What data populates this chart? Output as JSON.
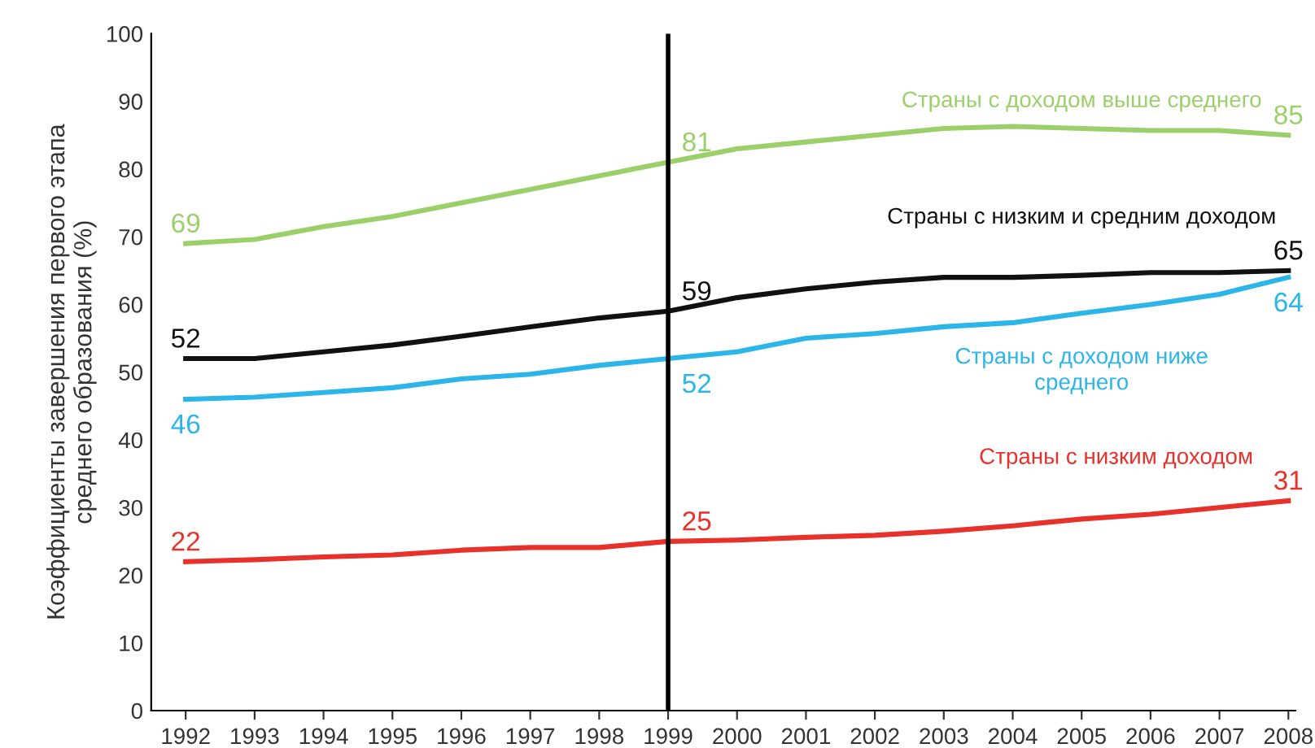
{
  "chart_data": {
    "type": "line",
    "ylabel": "Коэффициенты завершения первого этапа\nсреднего образования (%)",
    "x": [
      1992,
      1993,
      1994,
      1995,
      1996,
      1997,
      1998,
      1999,
      2000,
      2001,
      2002,
      2003,
      2004,
      2005,
      2006,
      2007,
      2008
    ],
    "xlim": [
      1991.5,
      2008.1
    ],
    "xticks": [
      1992,
      1993,
      1994,
      1995,
      1996,
      1997,
      1998,
      1999,
      2000,
      2001,
      2002,
      2003,
      2004,
      2005,
      2006,
      2007,
      2008
    ],
    "ylim": [
      0,
      100
    ],
    "yticks": [
      0,
      10,
      20,
      30,
      40,
      50,
      60,
      70,
      80,
      90,
      100
    ],
    "grid": false,
    "legend": false,
    "marker": "none",
    "line_style": "solid",
    "ref_lines": [
      {
        "axis": "x",
        "value": 1999,
        "color": "#000000"
      }
    ],
    "series": [
      {
        "name": "Страны с доходом выше среднего",
        "color": "#9bcf6a",
        "values": [
          69,
          69.6,
          71.5,
          73,
          75,
          77,
          79,
          81,
          83,
          84,
          85,
          86,
          86.3,
          86,
          85.7,
          85.7,
          85
        ],
        "value_labels": [
          "69",
          null,
          null,
          null,
          null,
          null,
          null,
          "81",
          null,
          null,
          null,
          null,
          null,
          null,
          null,
          null,
          "85"
        ]
      },
      {
        "name": "Страны с низким и средним доходом",
        "color": "#111111",
        "values": [
          52,
          52,
          53,
          54,
          55.3,
          56.7,
          58,
          59,
          61,
          62.3,
          63.3,
          64,
          64,
          64.3,
          64.7,
          64.7,
          65
        ],
        "value_labels": [
          "52",
          null,
          null,
          null,
          null,
          null,
          null,
          "59",
          null,
          null,
          null,
          null,
          null,
          null,
          null,
          null,
          "65"
        ]
      },
      {
        "name": "Страны с доходом ниже\nсреднего",
        "color": "#2cb5e8",
        "values": [
          46,
          46.3,
          47,
          47.7,
          49,
          49.7,
          51,
          52,
          53,
          55,
          55.7,
          56.7,
          57.3,
          58.7,
          60,
          61.5,
          64
        ],
        "value_labels": [
          "46",
          null,
          null,
          null,
          null,
          null,
          null,
          "52",
          null,
          null,
          null,
          null,
          null,
          null,
          null,
          null,
          "64"
        ]
      },
      {
        "name": "Страны с низким доходом",
        "color": "#e8312a",
        "values": [
          22,
          22.3,
          22.7,
          23,
          23.7,
          24.1,
          24.1,
          25,
          25.2,
          25.6,
          25.9,
          26.5,
          27.3,
          28.3,
          29,
          30,
          31
        ],
        "value_labels": [
          "22",
          null,
          null,
          null,
          null,
          null,
          null,
          "25",
          null,
          null,
          null,
          null,
          null,
          null,
          null,
          null,
          "31"
        ]
      }
    ]
  }
}
